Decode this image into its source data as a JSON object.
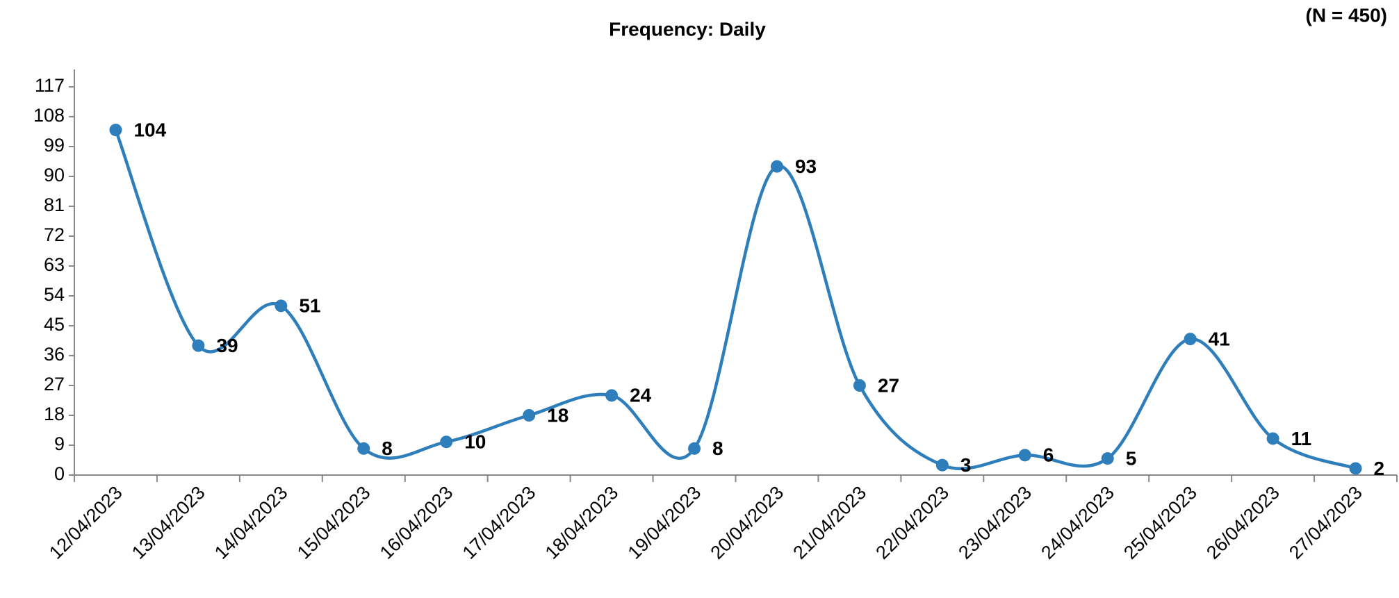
{
  "chart_data": {
    "type": "line",
    "title": "Frequency: Daily",
    "subtitle": "(N = 450)",
    "categories": [
      "12/04/2023",
      "13/04/2023",
      "14/04/2023",
      "15/04/2023",
      "16/04/2023",
      "17/04/2023",
      "18/04/2023",
      "19/04/2023",
      "20/04/2023",
      "21/04/2023",
      "22/04/2023",
      "23/04/2023",
      "24/04/2023",
      "25/04/2023",
      "26/04/2023",
      "27/04/2023"
    ],
    "values": [
      104,
      39,
      51,
      8,
      10,
      18,
      24,
      8,
      93,
      27,
      3,
      6,
      5,
      41,
      11,
      2
    ],
    "color": "#2e7ebc",
    "smooth": true,
    "ylim": [
      0,
      117
    ],
    "yticks": [
      0,
      9,
      18,
      27,
      36,
      45,
      54,
      63,
      72,
      81,
      90,
      99,
      108,
      117
    ],
    "grid": false
  }
}
